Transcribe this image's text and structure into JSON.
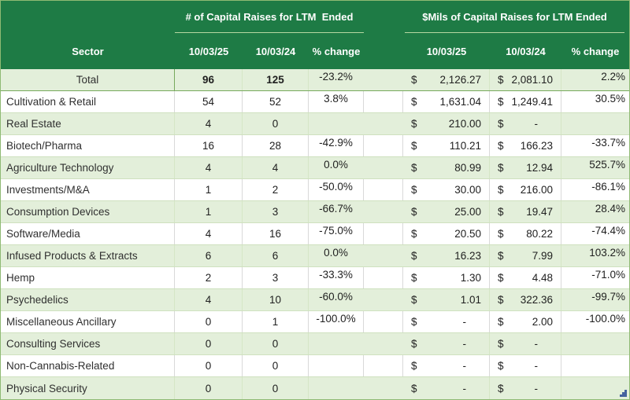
{
  "colors": {
    "header_green": "#1e7b45",
    "band_green": "#e3efda",
    "total_border_green": "#77a95c",
    "row_line_green": "#cfe1bf",
    "grid_line_gray": "#d9d9d9",
    "outer_border_green": "#8fba74",
    "header_underline": "#b7d8a2",
    "corner_mark_blue": "#44619e"
  },
  "chart_data": {
    "type": "table",
    "sector_column": "Sector",
    "currency_symbol": "$",
    "column_groups": [
      {
        "title": "# of Capital Raises for LTM  Ended",
        "columns": [
          "10/03/25",
          "10/03/24",
          "% change"
        ]
      },
      {
        "title": "$Mils of Capital Raises for LTM Ended",
        "columns": [
          "10/03/25",
          "10/03/24",
          "% change"
        ]
      }
    ],
    "rows": [
      {
        "sector": "Total",
        "count_2025": "96",
        "count_2024": "125",
        "count_change": "-23.2%",
        "usd_2025": "2,126.27",
        "usd_2024": "2,081.10",
        "usd_change": "2.2%"
      },
      {
        "sector": "Cultivation & Retail",
        "count_2025": "54",
        "count_2024": "52",
        "count_change": "3.8%",
        "usd_2025": "1,631.04",
        "usd_2024": "1,249.41",
        "usd_change": "30.5%"
      },
      {
        "sector": "Real Estate",
        "count_2025": "4",
        "count_2024": "0",
        "count_change": "",
        "usd_2025": "210.00",
        "usd_2024": "-",
        "usd_change": ""
      },
      {
        "sector": "Biotech/Pharma",
        "count_2025": "16",
        "count_2024": "28",
        "count_change": "-42.9%",
        "usd_2025": "110.21",
        "usd_2024": "166.23",
        "usd_change": "-33.7%"
      },
      {
        "sector": "Agriculture Technology",
        "count_2025": "4",
        "count_2024": "4",
        "count_change": "0.0%",
        "usd_2025": "80.99",
        "usd_2024": "12.94",
        "usd_change": "525.7%"
      },
      {
        "sector": "Investments/M&A",
        "count_2025": "1",
        "count_2024": "2",
        "count_change": "-50.0%",
        "usd_2025": "30.00",
        "usd_2024": "216.00",
        "usd_change": "-86.1%"
      },
      {
        "sector": "Consumption Devices",
        "count_2025": "1",
        "count_2024": "3",
        "count_change": "-66.7%",
        "usd_2025": "25.00",
        "usd_2024": "19.47",
        "usd_change": "28.4%"
      },
      {
        "sector": "Software/Media",
        "count_2025": "4",
        "count_2024": "16",
        "count_change": "-75.0%",
        "usd_2025": "20.50",
        "usd_2024": "80.22",
        "usd_change": "-74.4%"
      },
      {
        "sector": "Infused Products & Extracts",
        "count_2025": "6",
        "count_2024": "6",
        "count_change": "0.0%",
        "usd_2025": "16.23",
        "usd_2024": "7.99",
        "usd_change": "103.2%"
      },
      {
        "sector": "Hemp",
        "count_2025": "2",
        "count_2024": "3",
        "count_change": "-33.3%",
        "usd_2025": "1.30",
        "usd_2024": "4.48",
        "usd_change": "-71.0%"
      },
      {
        "sector": "Psychedelics",
        "count_2025": "4",
        "count_2024": "10",
        "count_change": "-60.0%",
        "usd_2025": "1.01",
        "usd_2024": "322.36",
        "usd_change": "-99.7%"
      },
      {
        "sector": "Miscellaneous Ancillary",
        "count_2025": "0",
        "count_2024": "1",
        "count_change": "-100.0%",
        "usd_2025": "-",
        "usd_2024": "2.00",
        "usd_change": "-100.0%"
      },
      {
        "sector": "Consulting Services",
        "count_2025": "0",
        "count_2024": "0",
        "count_change": "",
        "usd_2025": "-",
        "usd_2024": "-",
        "usd_change": ""
      },
      {
        "sector": "Non-Cannabis-Related",
        "count_2025": "0",
        "count_2024": "0",
        "count_change": "",
        "usd_2025": "-",
        "usd_2024": "-",
        "usd_change": ""
      },
      {
        "sector": "Physical Security",
        "count_2025": "0",
        "count_2024": "0",
        "count_change": "",
        "usd_2025": "-",
        "usd_2024": "-",
        "usd_change": ""
      }
    ]
  }
}
